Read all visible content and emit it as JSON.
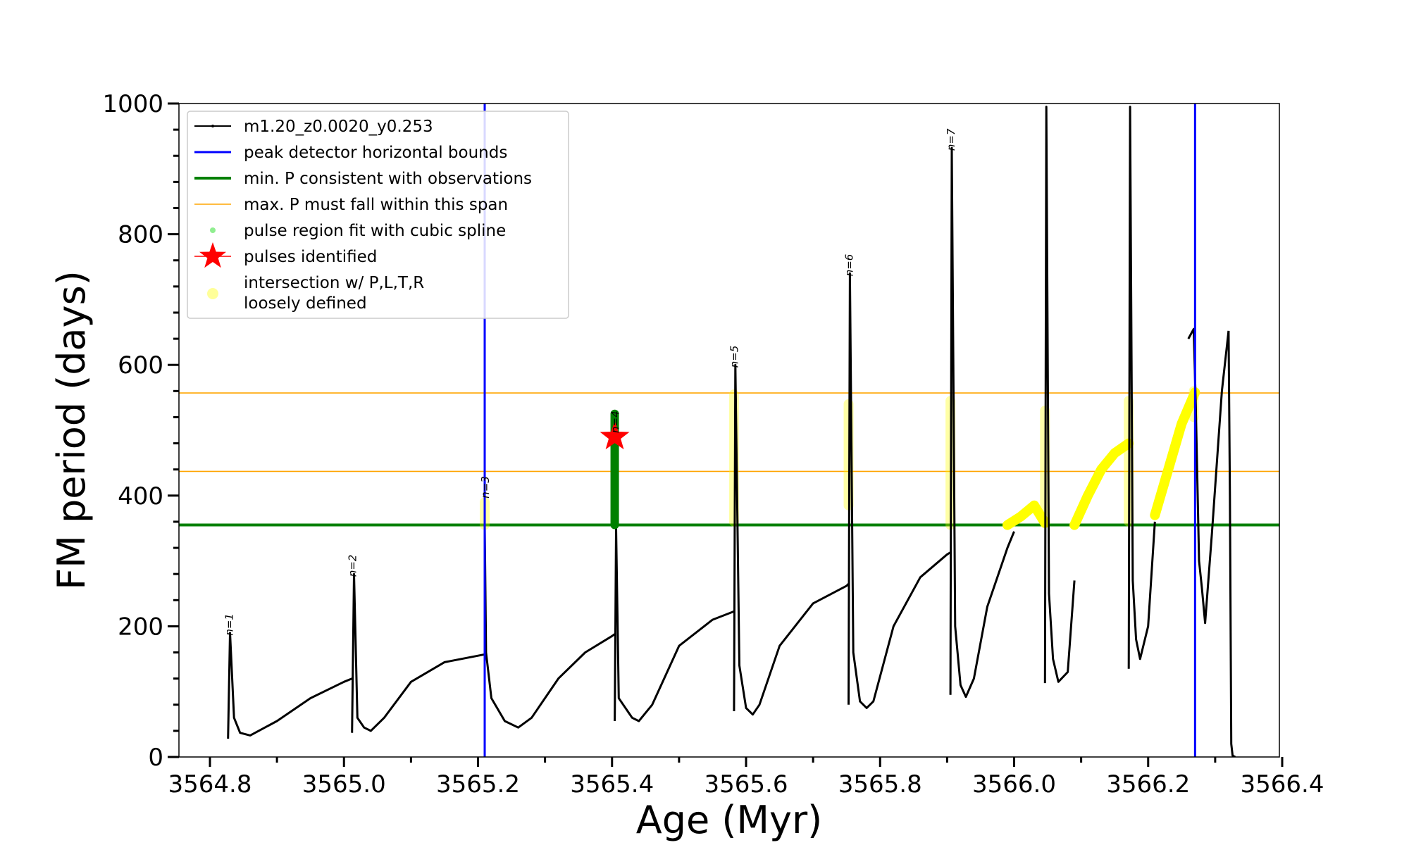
{
  "chart_data": {
    "type": "line",
    "title": "",
    "xlabel": "Age (Myr)",
    "ylabel": "FM period (days)",
    "xlim": [
      3564.78,
      3566.4
    ],
    "ylim": [
      0,
      1000
    ],
    "grid": false,
    "legend_position": "top-left",
    "xticks": [
      3564.8,
      3565.0,
      3565.2,
      3565.4,
      3565.6,
      3565.8,
      3566.0,
      3566.2,
      3566.4
    ],
    "xtick_labels": [
      "3564.8",
      "3565.0",
      "3565.2",
      "3565.4",
      "3565.6",
      "3565.8",
      "3566.0",
      "3566.2",
      "3566.4"
    ],
    "yticks": [
      0,
      200,
      400,
      600,
      800,
      1000
    ],
    "ytick_labels": [
      "0",
      "200",
      "400",
      "600",
      "800",
      "1000"
    ],
    "colors": {
      "track": "#000000",
      "bounds": "#0000ff",
      "min_p": "#008000",
      "max_p": "#ffa500",
      "spline": "#90ee90",
      "pulse": "#ff0000",
      "intersection": "#ffff00",
      "pulse_fit": "#008000"
    },
    "vertical_bounds": [
      3565.21,
      3566.27
    ],
    "min_period": 355,
    "max_period_span": [
      437,
      557
    ],
    "legend": [
      {
        "label": "m1.20_z0.0020_y0.253",
        "style": "track"
      },
      {
        "label": "peak detector horizontal bounds",
        "style": "bounds"
      },
      {
        "label": "min. P consistent with observations",
        "style": "min_p"
      },
      {
        "label": "max. P must fall within this span",
        "style": "max_p"
      },
      {
        "label": "pulse region fit with cubic spline",
        "style": "spline"
      },
      {
        "label": "pulses identified",
        "style": "pulse"
      },
      {
        "label": "intersection w/ P,L,T,R",
        "label2": "loosely defined",
        "style": "intersection"
      }
    ],
    "series": [
      {
        "name": "m1.20_z0.0020_y0.253",
        "segments": [
          {
            "x": [
              3564.827,
              3564.83,
              3564.836,
              3564.845,
              3564.86,
              3564.9,
              3564.95,
              3565.0,
              3565.012
            ],
            "y": [
              28,
              190,
              60,
              37,
              33,
              55,
              90,
              115,
              120
            ]
          },
          {
            "x": [
              3565.012,
              3565.015,
              3565.02,
              3565.03,
              3565.04,
              3565.06,
              3565.1,
              3565.15,
              3565.2,
              3565.21
            ],
            "y": [
              37,
              280,
              60,
              45,
              40,
              60,
              115,
              145,
              155,
              157
            ]
          },
          {
            "x": [
              3565.21,
              3565.212,
              3565.22,
              3565.24,
              3565.26,
              3565.28,
              3565.32,
              3565.36,
              3565.4,
              3565.404
            ],
            "y": [
              355,
              160,
              90,
              55,
              45,
              60,
              120,
              160,
              185,
              188
            ]
          },
          {
            "x": [
              3565.404,
              3565.406,
              3565.41,
              3565.43,
              3565.44,
              3565.46,
              3565.5,
              3565.55,
              3565.58,
              3565.582
            ],
            "y": [
              55,
              350,
              90,
              60,
              55,
              80,
              170,
              210,
              222,
              223
            ]
          },
          {
            "x": [
              3565.582,
              3565.584,
              3565.59,
              3565.6,
              3565.61,
              3565.62,
              3565.65,
              3565.7,
              3565.75,
              3565.753
            ],
            "y": [
              70,
              600,
              140,
              75,
              65,
              80,
              170,
              235,
              262,
              265
            ]
          },
          {
            "x": [
              3565.753,
              3565.755,
              3565.76,
              3565.77,
              3565.78,
              3565.79,
              3565.82,
              3565.86,
              3565.9,
              3565.905
            ],
            "y": [
              80,
              740,
              160,
              85,
              75,
              85,
              200,
              275,
              310,
              313
            ]
          },
          {
            "x": [
              3565.905,
              3565.907,
              3565.912,
              3565.92,
              3565.928,
              3565.94,
              3565.96,
              3565.99,
              3566.0
            ],
            "y": [
              95,
              932,
              200,
              110,
              92,
              120,
              230,
              320,
              345
            ]
          },
          {
            "x": [
              3566.046,
              3566.048,
              3566.052,
              3566.058,
              3566.066,
              3566.08,
              3566.09
            ],
            "y": [
              113,
              995,
              250,
              150,
              115,
              130,
              270
            ]
          },
          {
            "x": [
              3566.171,
              3566.173,
              3566.177,
              3566.182,
              3566.188,
              3566.2,
              3566.21
            ],
            "y": [
              135,
              995,
              270,
              180,
              150,
              200,
              360
            ]
          },
          {
            "x": [
              3566.26,
              3566.268,
              3566.271,
              3566.276,
              3566.28,
              3566.285,
              3566.295,
              3566.31,
              3566.32
            ],
            "y": [
              640,
              655,
              540,
              300,
              260,
              205,
              340,
              560,
              652
            ]
          },
          {
            "x": [
              3566.32,
              3566.322,
              3566.324,
              3566.326,
              3566.33
            ],
            "y": [
              652,
              400,
              20,
              2,
              0
            ]
          }
        ]
      },
      {
        "name": "intersection w/ P,L,T,R",
        "segments": [
          {
            "x": [
              3565.99,
              3566.01,
              3566.03,
              3566.046
            ],
            "y": [
              355,
              368,
              385,
              358
            ]
          },
          {
            "x": [
              3566.09,
              3566.11,
              3566.13,
              3566.15,
              3566.171
            ],
            "y": [
              355,
              400,
              440,
              465,
              480
            ]
          },
          {
            "x": [
              3566.21,
              3566.23,
              3566.25,
              3566.27
            ],
            "y": [
              370,
              440,
              510,
              558
            ]
          }
        ],
        "vertical_bands": [
          {
            "x": 3565.21,
            "y": [
              355,
              390
            ]
          },
          {
            "x": 3565.582,
            "y": [
              360,
              555
            ]
          },
          {
            "x": 3565.753,
            "y": [
              385,
              540
            ]
          },
          {
            "x": 3565.905,
            "y": [
              355,
              545
            ]
          },
          {
            "x": 3566.046,
            "y": [
              360,
              530
            ]
          },
          {
            "x": 3566.171,
            "y": [
              360,
              545
            ]
          },
          {
            "x": 3566.268,
            "y": [
              520,
              560
            ]
          }
        ]
      },
      {
        "name": "pulse region fit with cubic spline",
        "segments": [
          {
            "x": [
              3565.404,
              3565.404
            ],
            "y": [
              355,
              525
            ]
          }
        ]
      }
    ],
    "pulses_identified": [
      {
        "x": 3565.404,
        "y": 490
      }
    ],
    "peak_labels": [
      {
        "text": "n=1",
        "x": 3564.832,
        "y": 190
      },
      {
        "text": "n=2",
        "x": 3565.016,
        "y": 280
      },
      {
        "text": "n=3",
        "x": 3565.214,
        "y": 400
      },
      {
        "text": "n=4",
        "x": 3565.408,
        "y": 500
      },
      {
        "text": "n=5",
        "x": 3565.586,
        "y": 600
      },
      {
        "text": "n=6",
        "x": 3565.757,
        "y": 740
      },
      {
        "text": "n=7",
        "x": 3565.909,
        "y": 932
      }
    ]
  }
}
